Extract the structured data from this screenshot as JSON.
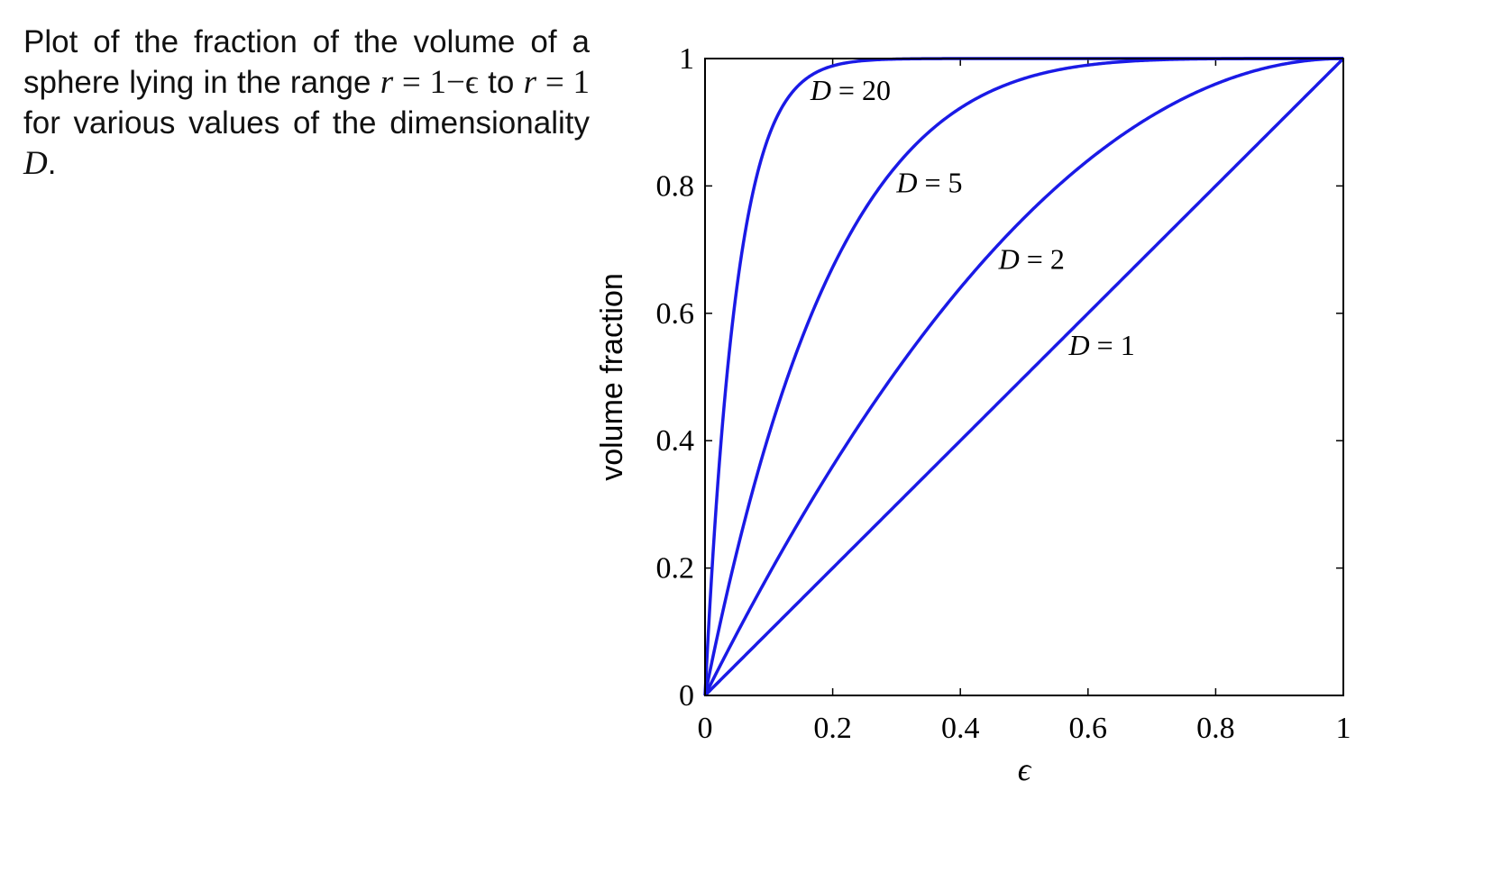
{
  "caption": {
    "line1": "Plot of the fraction of the volume of",
    "line2_text": "a sphere lying in the range",
    "line2_math_var": "r",
    "line2_math_rest": " = 1−ϵ",
    "line3_to": "to",
    "line3_math_var": "r",
    "line3_math_rest": " = 1",
    "line3_text": "for various values of the",
    "line4_text": "dimensionality",
    "line4_math_var": "D",
    "line4_end": "."
  },
  "colors": {
    "curve": "#1a1ae6",
    "axes": "#000000",
    "background": "#ffffff"
  },
  "chart_data": {
    "type": "line",
    "formula": "1 - (1 - ε)^D",
    "xlabel": "ϵ",
    "ylabel": "volume fraction",
    "xlim": [
      0,
      1
    ],
    "ylim": [
      0,
      1
    ],
    "xticks": [
      {
        "value": 0,
        "label": "0"
      },
      {
        "value": 0.2,
        "label": "0.2"
      },
      {
        "value": 0.4,
        "label": "0.4"
      },
      {
        "value": 0.6,
        "label": "0.6"
      },
      {
        "value": 0.8,
        "label": "0.8"
      },
      {
        "value": 1,
        "label": "1"
      }
    ],
    "yticks": [
      {
        "value": 0,
        "label": "0"
      },
      {
        "value": 0.2,
        "label": "0.2"
      },
      {
        "value": 0.4,
        "label": "0.4"
      },
      {
        "value": 0.6,
        "label": "0.6"
      },
      {
        "value": 0.8,
        "label": "0.8"
      },
      {
        "value": 1,
        "label": "1"
      }
    ],
    "grid": false,
    "legend": "none",
    "series": [
      {
        "name": "D = 20",
        "D": 20,
        "label_var": "D",
        "label_rest": " = 20",
        "label_anchor": {
          "x": 0.165,
          "y": 0.935
        },
        "x": [
          0,
          0.01,
          0.02,
          0.04,
          0.06,
          0.08,
          0.1,
          0.12,
          0.15,
          0.2,
          0.3,
          0.4,
          0.6,
          0.8,
          1.0
        ],
        "y": [
          0,
          0.182,
          0.332,
          0.558,
          0.71,
          0.811,
          0.878,
          0.922,
          0.961,
          0.988,
          0.999,
          1.0,
          1.0,
          1.0,
          1.0
        ]
      },
      {
        "name": "D = 5",
        "D": 5,
        "label_var": "D",
        "label_rest": " = 5",
        "label_anchor": {
          "x": 0.3,
          "y": 0.79
        },
        "x": [
          0,
          0.05,
          0.1,
          0.15,
          0.2,
          0.25,
          0.3,
          0.35,
          0.4,
          0.5,
          0.6,
          0.7,
          0.8,
          0.9,
          1.0
        ],
        "y": [
          0,
          0.226,
          0.41,
          0.556,
          0.672,
          0.763,
          0.832,
          0.884,
          0.922,
          0.969,
          0.99,
          0.998,
          1.0,
          1.0,
          1.0
        ]
      },
      {
        "name": "D = 2",
        "D": 2,
        "label_var": "D",
        "label_rest": " = 2",
        "label_anchor": {
          "x": 0.46,
          "y": 0.67
        },
        "x": [
          0,
          0.1,
          0.2,
          0.3,
          0.4,
          0.5,
          0.6,
          0.7,
          0.8,
          0.9,
          1.0
        ],
        "y": [
          0,
          0.19,
          0.36,
          0.51,
          0.64,
          0.75,
          0.84,
          0.91,
          0.96,
          0.99,
          1.0
        ]
      },
      {
        "name": "D = 1",
        "D": 1,
        "label_var": "D",
        "label_rest": " = 1",
        "label_anchor": {
          "x": 0.57,
          "y": 0.535
        },
        "x": [
          0,
          1.0
        ],
        "y": [
          0,
          1.0
        ]
      }
    ]
  }
}
